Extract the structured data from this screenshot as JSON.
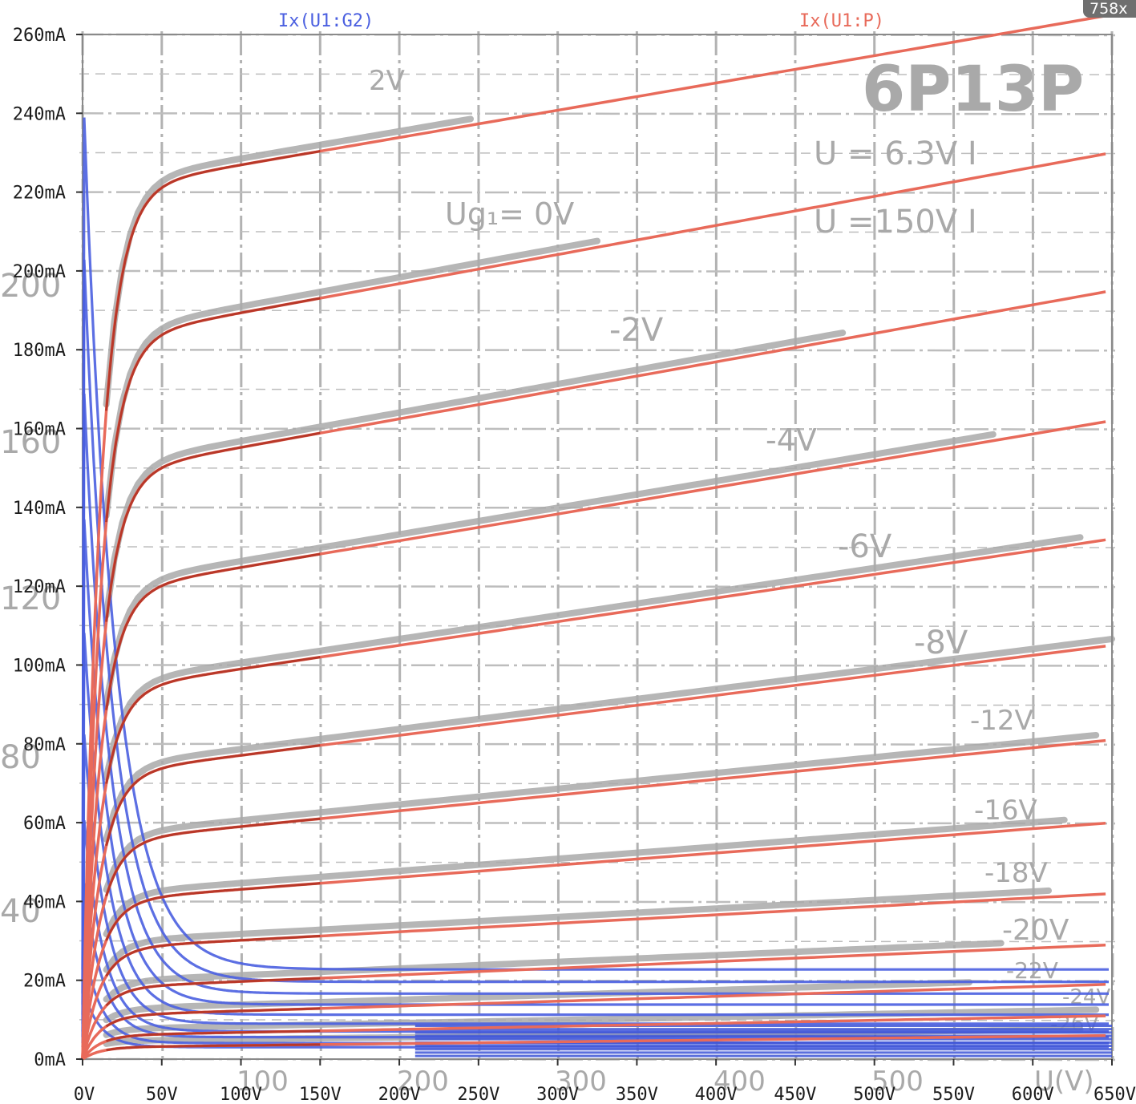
{
  "zoom_badge": "758x",
  "chart_data": {
    "type": "line",
    "title": "",
    "xlabel": "",
    "ylabel": "",
    "xlim": [
      0,
      650
    ],
    "ylim": [
      0,
      260
    ],
    "x_ticks": [
      "0V",
      "50V",
      "100V",
      "150V",
      "200V",
      "250V",
      "300V",
      "350V",
      "400V",
      "450V",
      "500V",
      "550V",
      "600V",
      "650V"
    ],
    "y_ticks": [
      "0mA",
      "20mA",
      "40mA",
      "60mA",
      "80mA",
      "100mA",
      "120mA",
      "140mA",
      "160mA",
      "180mA",
      "200mA",
      "220mA",
      "240mA",
      "260mA"
    ],
    "grid": true,
    "legend_position": "top",
    "colors": {
      "plate": "#e86a5a",
      "screen": "#4a5fe0",
      "scan": "#a9a9a9",
      "frame": "#9a9a9a"
    },
    "series": [
      {
        "name": "Ix(U1:G2)",
        "role": "screen",
        "peaks": [
          250,
          213,
          178,
          145,
          115,
          88,
          65,
          48,
          30,
          18
        ]
      },
      {
        "name": "Ix(U1:P)",
        "role": "plate",
        "curves": [
          {
            "knee": 220,
            "end": 265
          },
          {
            "knee": 182,
            "end": 230
          },
          {
            "knee": 148,
            "end": 195
          },
          {
            "knee": 118,
            "end": 162
          },
          {
            "knee": 93,
            "end": 132
          },
          {
            "knee": 72,
            "end": 105
          },
          {
            "knee": 55,
            "end": 81
          },
          {
            "knee": 40,
            "end": 60
          },
          {
            "knee": 28,
            "end": 42
          },
          {
            "knee": 18,
            "end": 29
          },
          {
            "knee": 11,
            "end": 19
          },
          {
            "knee": 6,
            "end": 11
          },
          {
            "knee": 3,
            "end": 6
          }
        ]
      }
    ],
    "background_scan": {
      "tube": "6P13P",
      "line1": "U = 6.3V  I",
      "line2": "U  =150V  I",
      "curve_labels": [
        "2V",
        "Ug₁= 0V",
        "-2V",
        "-4V",
        "-6V",
        "-8V",
        "-12V",
        "-16V",
        "-18V",
        "-20V",
        "-22V",
        "-24V",
        "-26V"
      ],
      "x_scale": [
        "100",
        "200",
        "300",
        "400",
        "500",
        "U(V)"
      ],
      "y_scale": [
        "200",
        "160",
        "120",
        "80",
        "40"
      ]
    }
  }
}
